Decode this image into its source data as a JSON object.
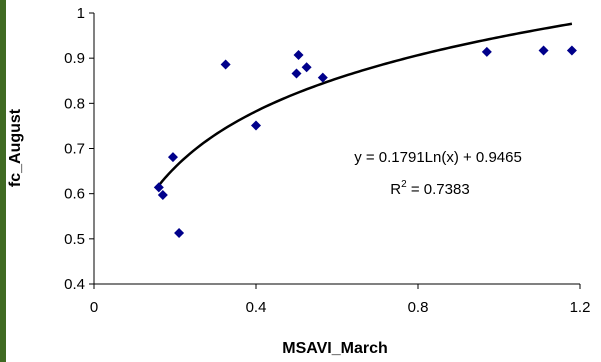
{
  "colors": {
    "background_edge": "#3f6a22",
    "plot_background": "#ffffff",
    "marker": "#00008b",
    "trendline": "#000000"
  },
  "chart_data": {
    "type": "scatter",
    "title": "",
    "xlabel": "MSAVI_March",
    "ylabel": "fc_August",
    "xlim": [
      0,
      1.2
    ],
    "ylim": [
      0.4,
      1.0
    ],
    "x_ticks": [
      0,
      0.4,
      0.8,
      1.2
    ],
    "x_tick_labels": [
      "0",
      "0.4",
      "0.8",
      "1.2"
    ],
    "y_ticks": [
      0.4,
      0.5,
      0.6,
      0.7,
      0.8,
      0.9,
      1.0
    ],
    "y_tick_labels": [
      "0.4",
      "0.5",
      "0.6",
      "0.7",
      "0.8",
      "0.9",
      "1"
    ],
    "grid": false,
    "legend": "none",
    "marker_shape": "diamond",
    "points": [
      {
        "x": 0.16,
        "y": 0.614
      },
      {
        "x": 0.17,
        "y": 0.597
      },
      {
        "x": 0.195,
        "y": 0.681
      },
      {
        "x": 0.21,
        "y": 0.513
      },
      {
        "x": 0.325,
        "y": 0.886
      },
      {
        "x": 0.4,
        "y": 0.751
      },
      {
        "x": 0.5,
        "y": 0.866
      },
      {
        "x": 0.505,
        "y": 0.907
      },
      {
        "x": 0.525,
        "y": 0.88
      },
      {
        "x": 0.565,
        "y": 0.857
      },
      {
        "x": 0.97,
        "y": 0.914
      },
      {
        "x": 1.11,
        "y": 0.917
      },
      {
        "x": 1.18,
        "y": 0.917
      }
    ],
    "trendline": {
      "type": "logarithmic",
      "coef_a": 0.1791,
      "coef_b": 0.9465,
      "x_start": 0.16,
      "x_end": 1.18
    },
    "annotations": {
      "equation": "y = 0.1791Ln(x) + 0.9465",
      "r2_prefix": "R",
      "r2_exponent": "2",
      "r2_value": " = 0.7383"
    }
  }
}
